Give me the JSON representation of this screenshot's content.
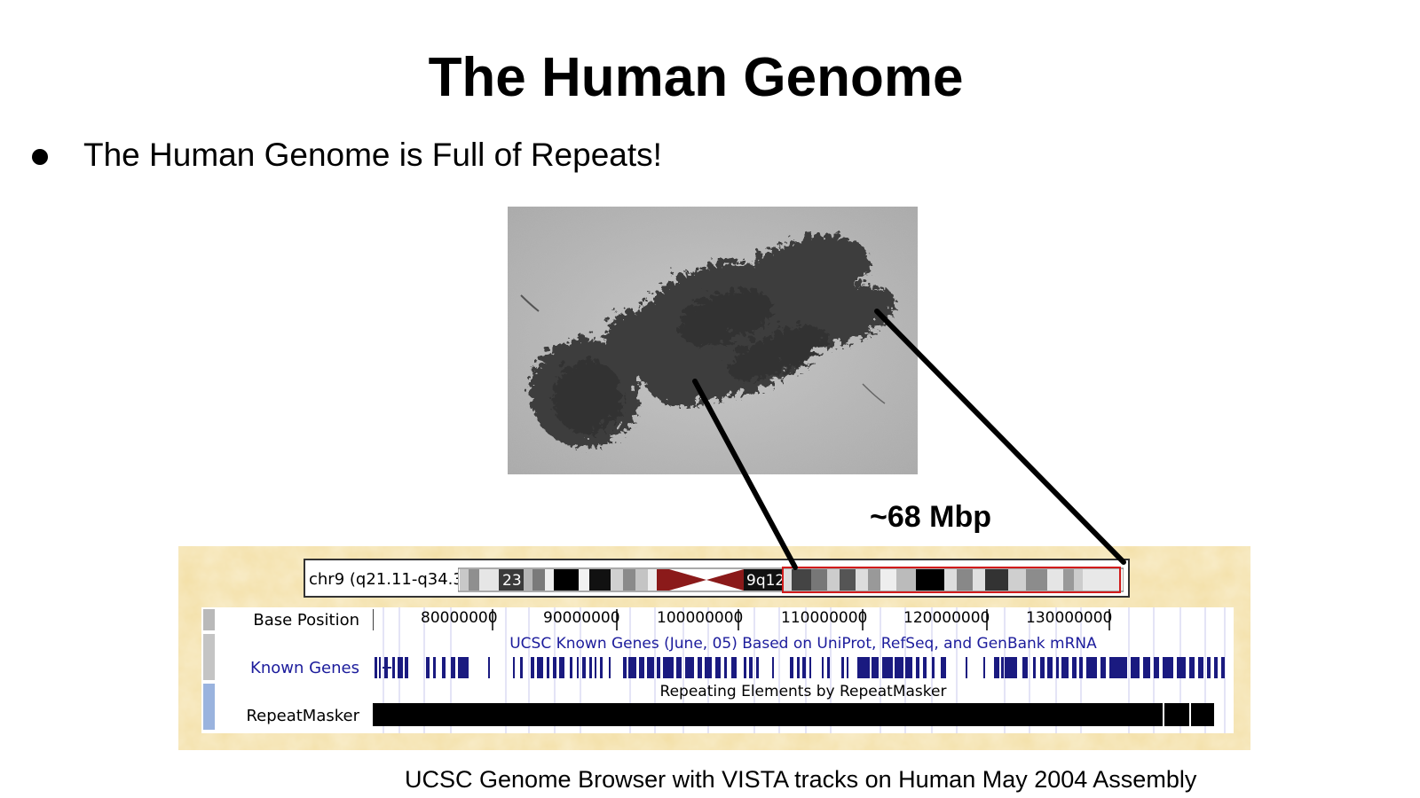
{
  "slide": {
    "title": "The Human Genome",
    "bullet": "The Human Genome is Full of Repeats!",
    "annotation": "~68 Mbp",
    "caption": "UCSC Genome Browser with VISTA tracks on Human May 2004 Assembly"
  },
  "browser": {
    "chrom_label": "chr9 (q21.11-q34.3)",
    "band_23": "23",
    "band_9q12": "9q12",
    "base_position_label": "Base Position",
    "ticks": [
      "80000000",
      "90000000",
      "100000000",
      "110000000",
      "120000000",
      "130000000"
    ],
    "known_genes_label": "Known Genes",
    "known_genes_desc": "UCSC Known Genes (June, 05) Based on UniProt, RefSeq, and GenBank mRNA",
    "repeat_desc": "Repeating Elements by RepeatMasker",
    "repeat_label": "RepeatMasker"
  },
  "colors": {
    "panel_bg": "#f5e3ae",
    "gene_blue": "#1a1a80",
    "link_blue": "#1c1c9c",
    "centromere": "#8b1a1a",
    "highlight": "#d11b1b"
  }
}
